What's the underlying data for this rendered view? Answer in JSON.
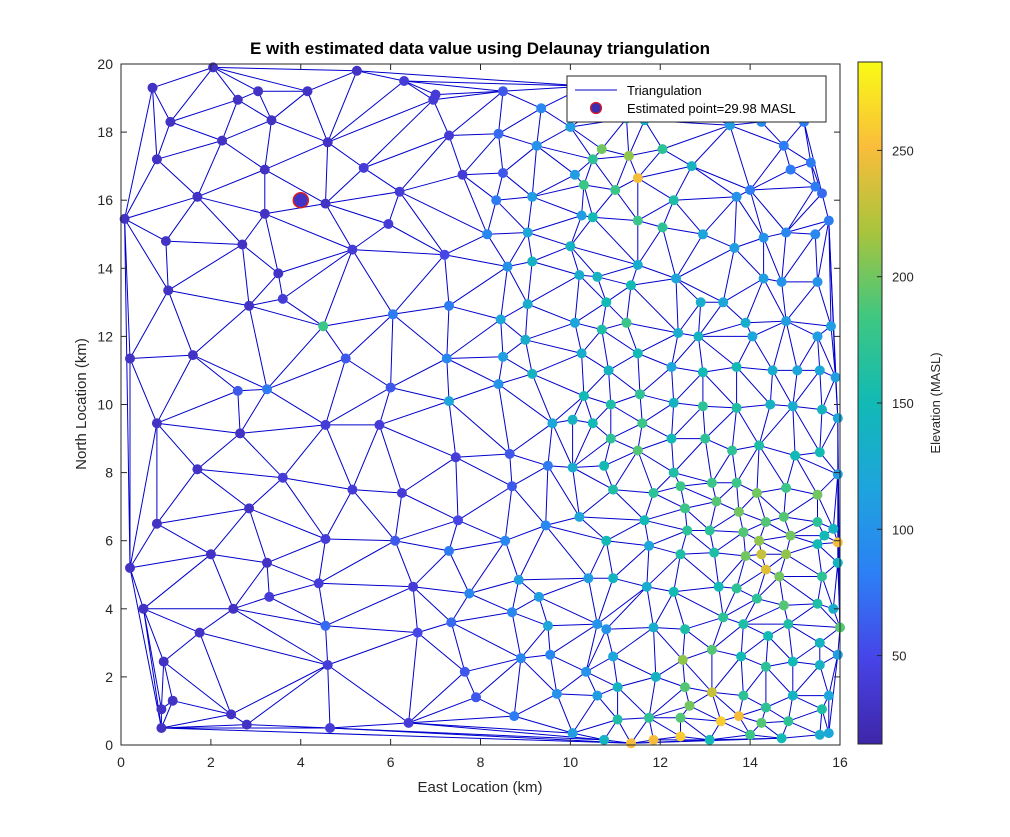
{
  "chart_data": {
    "type": "scatter",
    "title": "E with estimated data value using Delaunay triangulation",
    "xlabel": "East Location (km)",
    "ylabel": "North Location (km)",
    "xlim": [
      0,
      16
    ],
    "ylim": [
      0,
      20
    ],
    "xticks": [
      "0",
      "2",
      "4",
      "6",
      "8",
      "10",
      "12",
      "14",
      "16"
    ],
    "yticks": [
      "0",
      "2",
      "4",
      "6",
      "8",
      "10",
      "12",
      "14",
      "16",
      "18",
      "20"
    ],
    "grid": false,
    "legend": {
      "placement": "top-right",
      "entries": [
        "Triangulation",
        "Estimated point=29.98 MASL"
      ]
    },
    "colorbar": {
      "label": "Elevation (MASL)",
      "range": [
        15,
        285
      ],
      "ticks": [
        "50",
        "100",
        "150",
        "200",
        "250"
      ],
      "colormap": "parula"
    },
    "estimated_point": {
      "x": 4.0,
      "y": 16.0,
      "value": 29.98
    },
    "line_color": "#0000cc",
    "points": [
      [
        0.08,
        15.45,
        30
      ],
      [
        0.7,
        19.3,
        30
      ],
      [
        0.2,
        11.35,
        30
      ],
      [
        0.2,
        5.2,
        30
      ],
      [
        0.5,
        4.0,
        30
      ],
      [
        0.8,
        17.2,
        30
      ],
      [
        1.1,
        18.3,
        30
      ],
      [
        1.0,
        14.8,
        30
      ],
      [
        1.05,
        13.35,
        30
      ],
      [
        0.8,
        9.45,
        30
      ],
      [
        0.8,
        6.5,
        30
      ],
      [
        1.7,
        16.1,
        30
      ],
      [
        2.05,
        19.9,
        30
      ],
      [
        2.6,
        18.95,
        30
      ],
      [
        2.25,
        17.75,
        30
      ],
      [
        2.7,
        14.7,
        30
      ],
      [
        1.6,
        11.45,
        30
      ],
      [
        1.7,
        8.1,
        30
      ],
      [
        2.65,
        9.15,
        30
      ],
      [
        2.0,
        5.6,
        30
      ],
      [
        2.5,
        4.0,
        30
      ],
      [
        1.75,
        3.3,
        30
      ],
      [
        0.95,
        2.45,
        30
      ],
      [
        0.9,
        1.05,
        30
      ],
      [
        0.9,
        0.5,
        30
      ],
      [
        1.15,
        1.3,
        30
      ],
      [
        2.8,
        0.6,
        30
      ],
      [
        2.45,
        0.9,
        30
      ],
      [
        3.05,
        19.2,
        30
      ],
      [
        3.35,
        18.35,
        30
      ],
      [
        3.2,
        16.9,
        30
      ],
      [
        3.2,
        15.6,
        30
      ],
      [
        3.5,
        13.85,
        30
      ],
      [
        2.85,
        12.9,
        30
      ],
      [
        3.6,
        13.1,
        40
      ],
      [
        2.6,
        10.4,
        60
      ],
      [
        3.25,
        10.45,
        80
      ],
      [
        3.6,
        7.85,
        40
      ],
      [
        2.85,
        6.95,
        30
      ],
      [
        3.25,
        5.35,
        30
      ],
      [
        3.3,
        4.35,
        40
      ],
      [
        4.15,
        19.2,
        30
      ],
      [
        4.6,
        17.7,
        30
      ],
      [
        4.55,
        15.9,
        30
      ],
      [
        4.5,
        12.3,
        180
      ],
      [
        5.25,
        19.8,
        30
      ],
      [
        5.4,
        16.95,
        40
      ],
      [
        5.15,
        14.55,
        40
      ],
      [
        5.0,
        11.35,
        60
      ],
      [
        4.55,
        9.4,
        40
      ],
      [
        5.15,
        7.5,
        40
      ],
      [
        4.55,
        6.05,
        40
      ],
      [
        4.4,
        4.75,
        40
      ],
      [
        4.55,
        3.5,
        70
      ],
      [
        4.6,
        2.35,
        40
      ],
      [
        4.65,
        0.5,
        40
      ],
      [
        6.3,
        19.5,
        40
      ],
      [
        6.95,
        18.95,
        40
      ],
      [
        6.2,
        16.25,
        40
      ],
      [
        5.95,
        15.3,
        40
      ],
      [
        6.05,
        12.65,
        80
      ],
      [
        6.0,
        10.5,
        60
      ],
      [
        5.75,
        9.4,
        40
      ],
      [
        6.25,
        7.4,
        40
      ],
      [
        6.1,
        6.0,
        60
      ],
      [
        6.5,
        4.65,
        40
      ],
      [
        6.6,
        3.3,
        50
      ],
      [
        6.4,
        0.65,
        40
      ],
      [
        7.0,
        19.1,
        40
      ],
      [
        7.3,
        17.9,
        40
      ],
      [
        7.6,
        16.75,
        40
      ],
      [
        7.2,
        14.4,
        50
      ],
      [
        7.3,
        12.9,
        80
      ],
      [
        7.25,
        11.35,
        90
      ],
      [
        7.3,
        10.1,
        120
      ],
      [
        7.45,
        8.45,
        40
      ],
      [
        7.5,
        6.6,
        50
      ],
      [
        7.3,
        5.7,
        80
      ],
      [
        7.75,
        4.45,
        90
      ],
      [
        7.35,
        3.6,
        70
      ],
      [
        7.65,
        2.15,
        60
      ],
      [
        7.9,
        1.4,
        60
      ],
      [
        8.5,
        19.2,
        60
      ],
      [
        8.4,
        17.95,
        70
      ],
      [
        8.5,
        16.8,
        60
      ],
      [
        8.35,
        16.0,
        80
      ],
      [
        8.15,
        15.0,
        90
      ],
      [
        8.6,
        14.05,
        100
      ],
      [
        8.45,
        12.5,
        120
      ],
      [
        8.5,
        11.4,
        110
      ],
      [
        8.4,
        10.6,
        100
      ],
      [
        8.65,
        8.55,
        60
      ],
      [
        8.7,
        7.6,
        60
      ],
      [
        8.55,
        6.0,
        90
      ],
      [
        8.85,
        4.85,
        110
      ],
      [
        8.7,
        3.9,
        90
      ],
      [
        8.9,
        2.55,
        90
      ],
      [
        8.75,
        0.85,
        80
      ],
      [
        9.35,
        18.7,
        90
      ],
      [
        9.25,
        17.6,
        100
      ],
      [
        9.15,
        16.1,
        110
      ],
      [
        9.05,
        15.05,
        120
      ],
      [
        9.15,
        14.2,
        140
      ],
      [
        9.05,
        12.95,
        130
      ],
      [
        9.0,
        11.9,
        130
      ],
      [
        9.15,
        10.9,
        140
      ],
      [
        9.6,
        9.45,
        120
      ],
      [
        9.5,
        8.2,
        80
      ],
      [
        9.45,
        6.45,
        90
      ],
      [
        9.3,
        4.35,
        110
      ],
      [
        9.5,
        3.5,
        120
      ],
      [
        9.55,
        2.65,
        90
      ],
      [
        9.7,
        1.5,
        100
      ],
      [
        10.05,
        0.35,
        110
      ],
      [
        10.35,
        19.35,
        100
      ],
      [
        10.0,
        18.15,
        110
      ],
      [
        10.1,
        16.75,
        110
      ],
      [
        10.25,
        15.55,
        110
      ],
      [
        10.0,
        14.65,
        140
      ],
      [
        10.2,
        13.8,
        130
      ],
      [
        10.1,
        12.4,
        120
      ],
      [
        10.25,
        11.5,
        130
      ],
      [
        10.3,
        10.25,
        150
      ],
      [
        10.05,
        9.55,
        140
      ],
      [
        10.5,
        9.45,
        150
      ],
      [
        10.05,
        8.15,
        130
      ],
      [
        10.2,
        6.7,
        120
      ],
      [
        10.4,
        4.9,
        110
      ],
      [
        10.6,
        3.55,
        100
      ],
      [
        10.35,
        2.15,
        100
      ],
      [
        10.6,
        1.45,
        110
      ],
      [
        10.75,
        0.15,
        140
      ],
      [
        10.85,
        18.9,
        170
      ],
      [
        10.7,
        17.5,
        200
      ],
      [
        10.5,
        17.2,
        170
      ],
      [
        10.3,
        16.45,
        180
      ],
      [
        10.5,
        15.5,
        150
      ],
      [
        10.6,
        13.75,
        140
      ],
      [
        10.8,
        13.0,
        150
      ],
      [
        10.7,
        12.2,
        160
      ],
      [
        10.85,
        11.0,
        140
      ],
      [
        10.9,
        10.0,
        160
      ],
      [
        10.9,
        9.0,
        170
      ],
      [
        10.75,
        8.2,
        150
      ],
      [
        10.95,
        7.5,
        160
      ],
      [
        10.8,
        6.0,
        150
      ],
      [
        10.95,
        4.9,
        140
      ],
      [
        10.8,
        3.4,
        100
      ],
      [
        10.95,
        2.6,
        120
      ],
      [
        11.05,
        1.7,
        140
      ],
      [
        11.05,
        0.75,
        160
      ],
      [
        11.35,
        0.05,
        250
      ],
      [
        11.25,
        18.4,
        150
      ],
      [
        11.65,
        18.35,
        130
      ],
      [
        11.3,
        17.3,
        210
      ],
      [
        11.5,
        16.65,
        250
      ],
      [
        11.0,
        16.3,
        180
      ],
      [
        11.5,
        15.4,
        180
      ],
      [
        11.5,
        14.1,
        130
      ],
      [
        11.35,
        13.5,
        150
      ],
      [
        11.25,
        12.4,
        180
      ],
      [
        11.5,
        11.5,
        150
      ],
      [
        11.55,
        10.3,
        170
      ],
      [
        11.6,
        9.45,
        180
      ],
      [
        11.5,
        8.65,
        190
      ],
      [
        11.85,
        7.4,
        170
      ],
      [
        11.65,
        6.6,
        150
      ],
      [
        11.75,
        5.85,
        120
      ],
      [
        11.7,
        4.65,
        130
      ],
      [
        11.85,
        3.45,
        130
      ],
      [
        11.9,
        2.0,
        140
      ],
      [
        11.75,
        0.8,
        170
      ],
      [
        11.85,
        0.15,
        250
      ],
      [
        12.1,
        19.1,
        130
      ],
      [
        12.05,
        17.5,
        170
      ],
      [
        12.3,
        16.0,
        160
      ],
      [
        12.05,
        15.2,
        170
      ],
      [
        12.35,
        13.7,
        120
      ],
      [
        12.4,
        12.1,
        130
      ],
      [
        12.25,
        11.1,
        120
      ],
      [
        12.3,
        10.05,
        140
      ],
      [
        12.25,
        9.0,
        150
      ],
      [
        12.3,
        8.0,
        160
      ],
      [
        12.45,
        7.6,
        180
      ],
      [
        12.55,
        6.95,
        180
      ],
      [
        12.6,
        6.3,
        170
      ],
      [
        12.45,
        5.6,
        160
      ],
      [
        12.3,
        4.5,
        150
      ],
      [
        12.55,
        3.4,
        160
      ],
      [
        12.5,
        2.5,
        210
      ],
      [
        12.55,
        1.7,
        190
      ],
      [
        12.45,
        0.8,
        190
      ],
      [
        12.45,
        0.25,
        260
      ],
      [
        12.65,
        1.15,
        200
      ],
      [
        12.7,
        17.0,
        140
      ],
      [
        12.95,
        15.0,
        120
      ],
      [
        12.9,
        13.0,
        130
      ],
      [
        12.85,
        12.0,
        140
      ],
      [
        12.95,
        10.95,
        150
      ],
      [
        12.95,
        9.95,
        170
      ],
      [
        13.0,
        9.0,
        170
      ],
      [
        13.15,
        7.7,
        180
      ],
      [
        13.25,
        7.15,
        190
      ],
      [
        13.1,
        6.3,
        170
      ],
      [
        13.2,
        5.65,
        160
      ],
      [
        13.3,
        4.65,
        150
      ],
      [
        13.4,
        3.75,
        170
      ],
      [
        13.15,
        2.8,
        190
      ],
      [
        13.15,
        1.55,
        230
      ],
      [
        13.1,
        0.15,
        150
      ],
      [
        13.35,
        0.7,
        260
      ],
      [
        13.55,
        18.2,
        110
      ],
      [
        13.7,
        16.1,
        100
      ],
      [
        13.65,
        14.6,
        110
      ],
      [
        13.4,
        13.0,
        120
      ],
      [
        13.9,
        12.4,
        130
      ],
      [
        13.7,
        11.1,
        150
      ],
      [
        13.7,
        9.9,
        160
      ],
      [
        13.6,
        8.65,
        170
      ],
      [
        13.7,
        7.7,
        180
      ],
      [
        13.75,
        6.85,
        200
      ],
      [
        13.85,
        6.25,
        190
      ],
      [
        13.9,
        5.55,
        200
      ],
      [
        13.7,
        4.6,
        170
      ],
      [
        13.85,
        3.55,
        160
      ],
      [
        13.8,
        2.6,
        150
      ],
      [
        13.85,
        1.45,
        170
      ],
      [
        13.75,
        0.85,
        250
      ],
      [
        14.0,
        0.3,
        180
      ],
      [
        14.25,
        18.3,
        90
      ],
      [
        14.0,
        16.3,
        80
      ],
      [
        14.3,
        14.9,
        100
      ],
      [
        14.3,
        13.7,
        110
      ],
      [
        14.05,
        12.0,
        120
      ],
      [
        14.5,
        11.0,
        130
      ],
      [
        14.45,
        10.0,
        140
      ],
      [
        14.2,
        8.8,
        160
      ],
      [
        14.15,
        7.4,
        200
      ],
      [
        14.35,
        6.55,
        190
      ],
      [
        14.2,
        6.0,
        210
      ],
      [
        14.25,
        5.6,
        230
      ],
      [
        14.35,
        5.15,
        240
      ],
      [
        14.15,
        4.3,
        170
      ],
      [
        14.4,
        3.2,
        150
      ],
      [
        14.35,
        2.3,
        170
      ],
      [
        14.35,
        1.1,
        170
      ],
      [
        14.25,
        0.65,
        190
      ],
      [
        14.75,
        17.6,
        80
      ],
      [
        14.9,
        16.9,
        80
      ],
      [
        14.8,
        15.05,
        90
      ],
      [
        14.7,
        13.6,
        100
      ],
      [
        14.8,
        12.45,
        110
      ],
      [
        15.05,
        11.0,
        120
      ],
      [
        14.95,
        9.95,
        130
      ],
      [
        15.0,
        8.5,
        150
      ],
      [
        14.8,
        7.55,
        180
      ],
      [
        14.75,
        6.7,
        190
      ],
      [
        14.9,
        6.15,
        200
      ],
      [
        14.8,
        5.6,
        210
      ],
      [
        14.65,
        4.95,
        200
      ],
      [
        14.75,
        4.1,
        190
      ],
      [
        14.85,
        3.55,
        160
      ],
      [
        14.95,
        2.45,
        150
      ],
      [
        14.95,
        1.45,
        140
      ],
      [
        14.85,
        0.7,
        170
      ],
      [
        14.7,
        0.2,
        150
      ],
      [
        15.2,
        18.3,
        80
      ],
      [
        15.35,
        17.1,
        80
      ],
      [
        15.45,
        16.4,
        80
      ],
      [
        15.45,
        15.0,
        90
      ],
      [
        15.5,
        13.6,
        100
      ],
      [
        15.5,
        12.0,
        110
      ],
      [
        15.55,
        11.0,
        120
      ],
      [
        15.6,
        9.85,
        140
      ],
      [
        15.55,
        8.6,
        150
      ],
      [
        15.5,
        7.35,
        200
      ],
      [
        15.5,
        6.55,
        170
      ],
      [
        15.5,
        5.9,
        150
      ],
      [
        15.6,
        4.95,
        170
      ],
      [
        15.5,
        4.15,
        160
      ],
      [
        15.55,
        3.0,
        140
      ],
      [
        15.55,
        2.35,
        140
      ],
      [
        15.6,
        1.05,
        160
      ],
      [
        15.55,
        0.3,
        130
      ],
      [
        15.65,
        6.15,
        150
      ],
      [
        15.75,
        15.4,
        80
      ],
      [
        15.6,
        16.2,
        70
      ],
      [
        15.8,
        12.3,
        110
      ],
      [
        15.9,
        10.8,
        110
      ],
      [
        15.95,
        9.6,
        120
      ],
      [
        15.95,
        7.95,
        110
      ],
      [
        15.85,
        6.35,
        140
      ],
      [
        15.95,
        5.95,
        250
      ],
      [
        15.95,
        5.35,
        140
      ],
      [
        15.85,
        4.0,
        130
      ],
      [
        16.0,
        3.45,
        190
      ],
      [
        15.95,
        2.65,
        110
      ],
      [
        15.75,
        1.45,
        120
      ],
      [
        15.75,
        0.35,
        120
      ]
    ]
  }
}
